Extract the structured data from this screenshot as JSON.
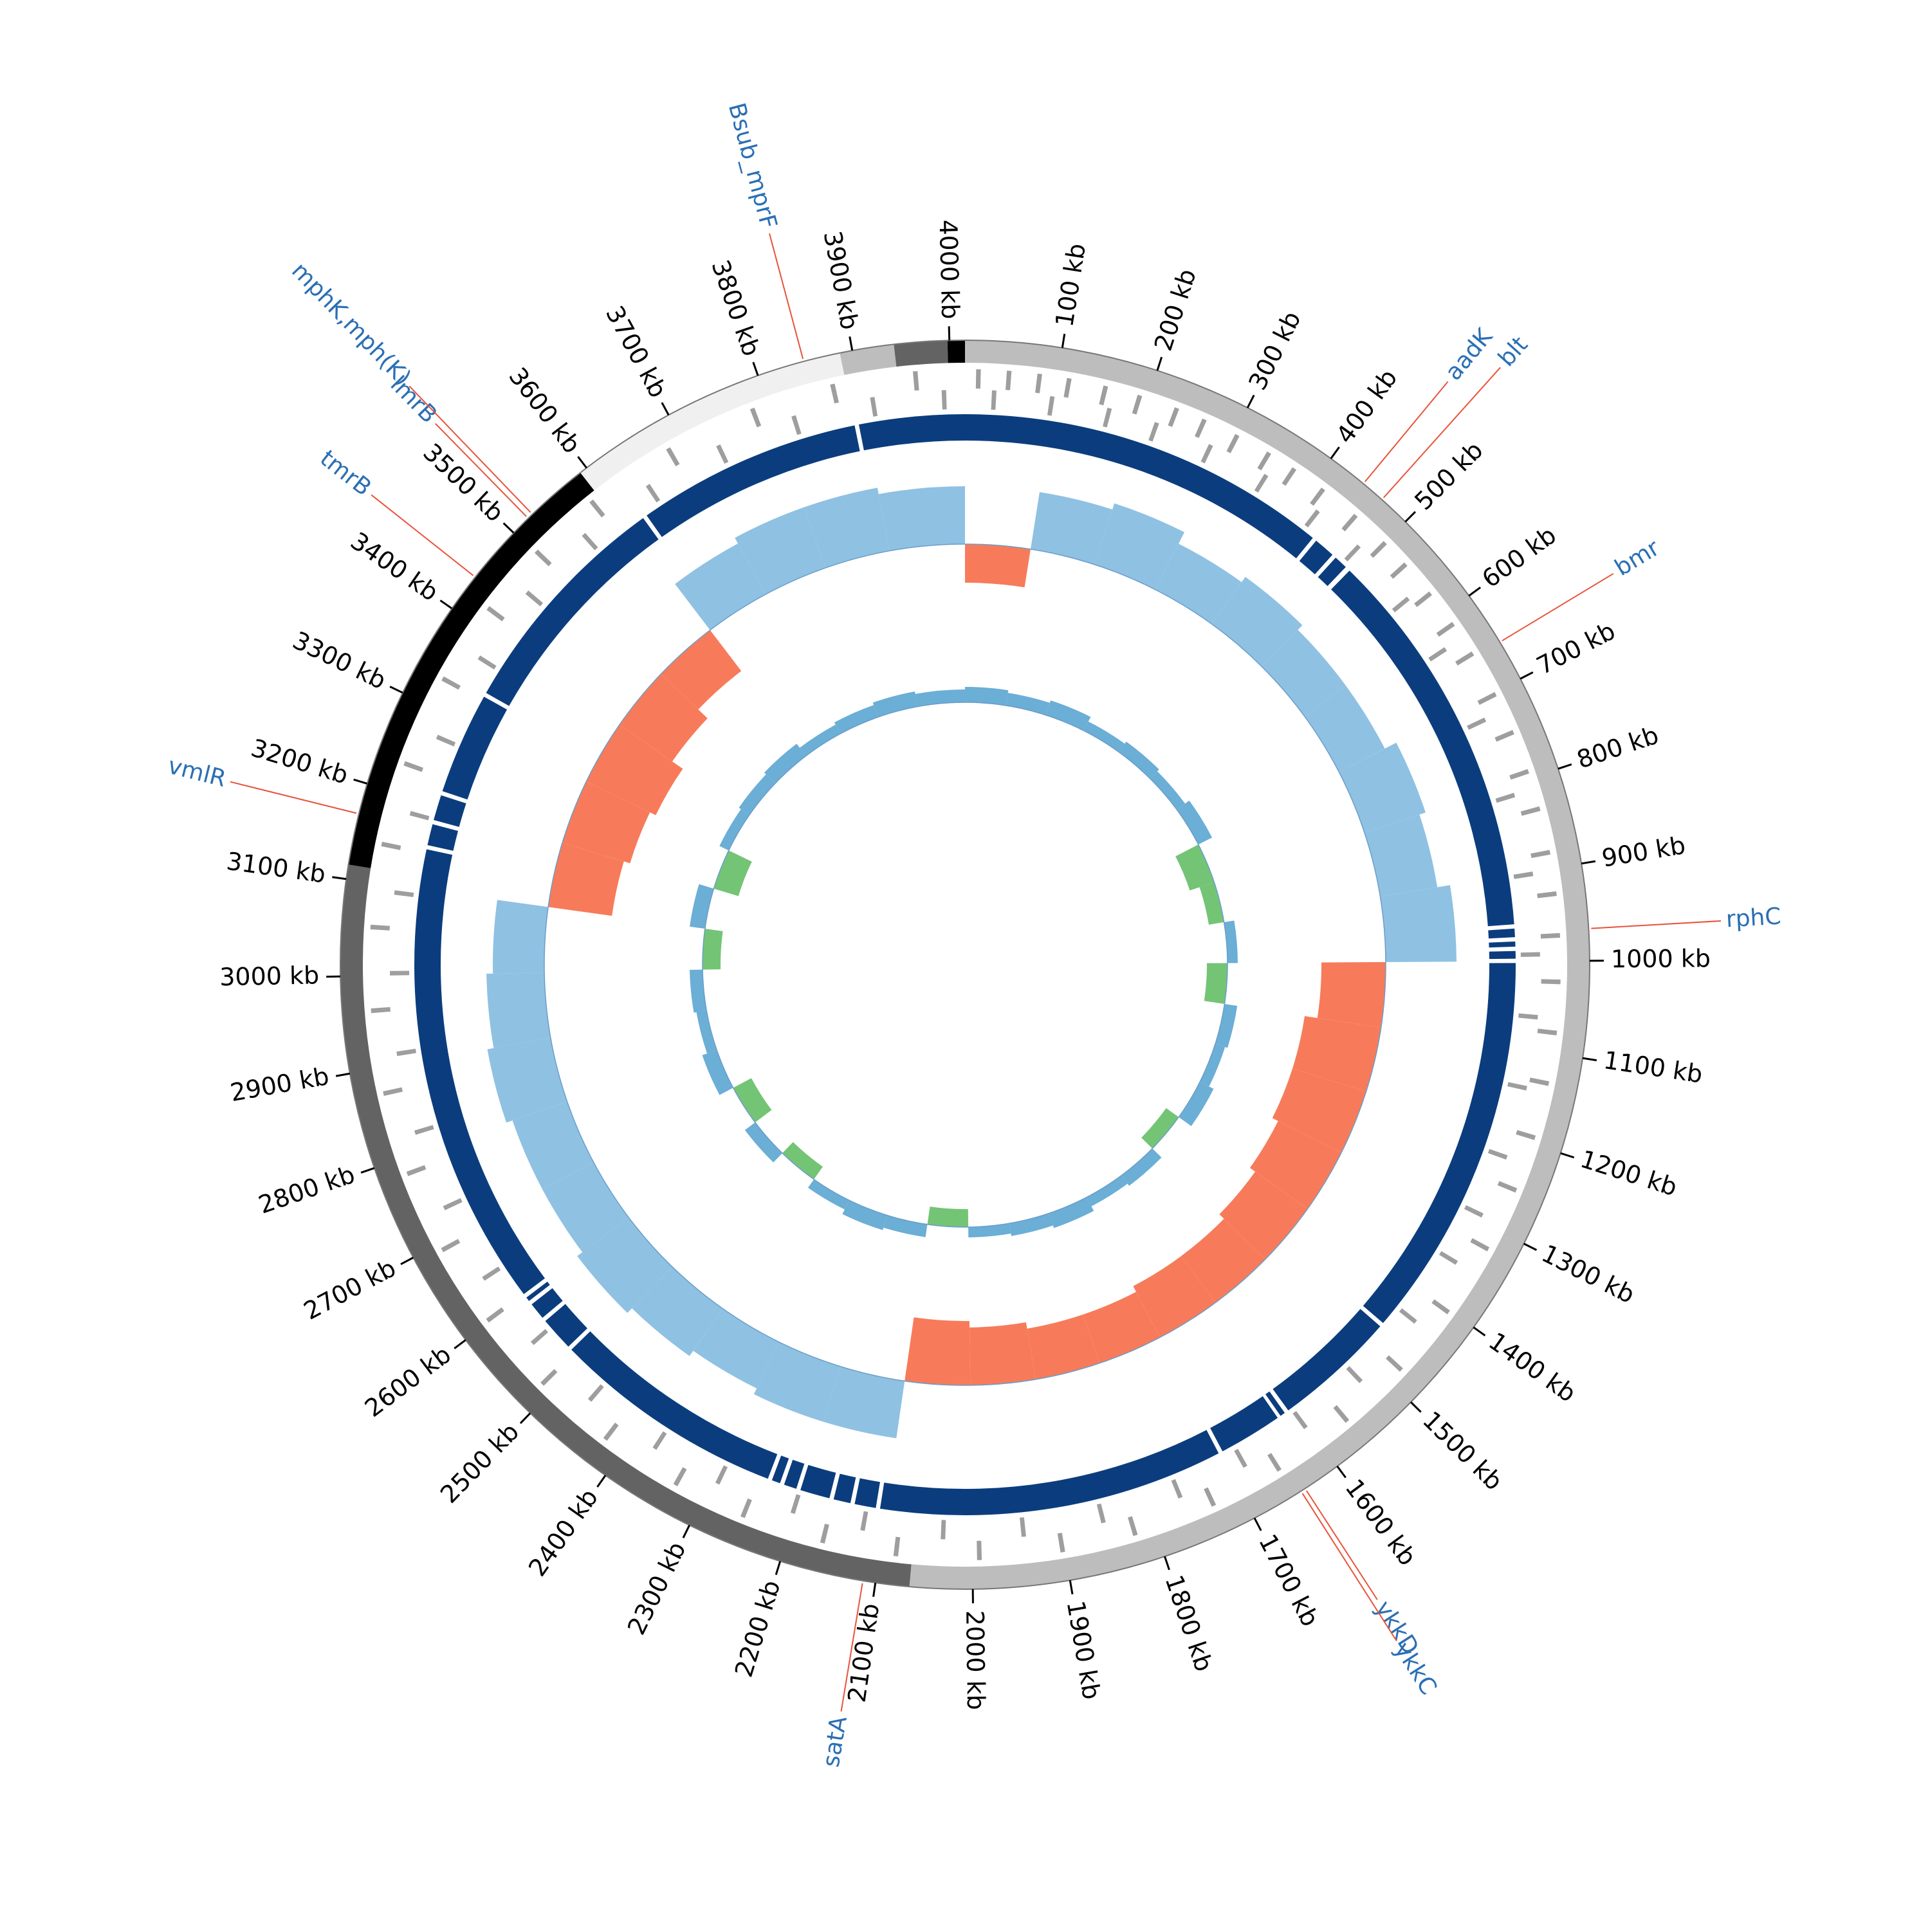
{
  "chart_data": {
    "type": "circular-genome",
    "xlim": [
      0,
      4016
    ],
    "xticks": [
      {
        "value": 100,
        "label": "100 kb"
      },
      {
        "value": 200,
        "label": "200 kb"
      },
      {
        "value": 300,
        "label": "300 kb"
      },
      {
        "value": 400,
        "label": "400 kb"
      },
      {
        "value": 500,
        "label": "500 kb"
      },
      {
        "value": 600,
        "label": "600 kb"
      },
      {
        "value": 700,
        "label": "700 kb"
      },
      {
        "value": 800,
        "label": "800 kb"
      },
      {
        "value": 900,
        "label": "900 kb"
      },
      {
        "value": 1000,
        "label": "1000 kb"
      },
      {
        "value": 1100,
        "label": "1100 kb"
      },
      {
        "value": 1200,
        "label": "1200 kb"
      },
      {
        "value": 1300,
        "label": "1300 kb"
      },
      {
        "value": 1400,
        "label": "1400 kb"
      },
      {
        "value": 1500,
        "label": "1500 kb"
      },
      {
        "value": 1600,
        "label": "1600 kb"
      },
      {
        "value": 1700,
        "label": "1700 kb"
      },
      {
        "value": 1800,
        "label": "1800 kb"
      },
      {
        "value": 1900,
        "label": "1900 kb"
      },
      {
        "value": 2000,
        "label": "2000 kb"
      },
      {
        "value": 2100,
        "label": "2100 kb"
      },
      {
        "value": 2200,
        "label": "2200 kb"
      },
      {
        "value": 2300,
        "label": "2300 kb"
      },
      {
        "value": 2400,
        "label": "2400 kb"
      },
      {
        "value": 2500,
        "label": "2500 kb"
      },
      {
        "value": 2600,
        "label": "2600 kb"
      },
      {
        "value": 2700,
        "label": "2700 kb"
      },
      {
        "value": 2800,
        "label": "2800 kb"
      },
      {
        "value": 2900,
        "label": "2900 kb"
      },
      {
        "value": 3000,
        "label": "3000 kb"
      },
      {
        "value": 3100,
        "label": "3100 kb"
      },
      {
        "value": 3200,
        "label": "3200 kb"
      },
      {
        "value": 3300,
        "label": "3300 kb"
      },
      {
        "value": 3400,
        "label": "3400 kb"
      },
      {
        "value": 3500,
        "label": "3500 kb"
      },
      {
        "value": 3600,
        "label": "3600 kb"
      },
      {
        "value": 3700,
        "label": "3700 kb"
      },
      {
        "value": 3800,
        "label": "3800 kb"
      },
      {
        "value": 3900,
        "label": "3900 kb"
      },
      {
        "value": 4000,
        "label": "4000 kb"
      }
    ],
    "contigs": [
      {
        "start": 0,
        "end": 2065,
        "color": "#bdbdbd"
      },
      {
        "start": 2065,
        "end": 3115,
        "color": "#636363"
      },
      {
        "start": 3115,
        "end": 3592,
        "color": "#000000"
      },
      {
        "start": 3592,
        "end": 3887,
        "color": "#f0f0f0"
      },
      {
        "start": 3887,
        "end": 3943,
        "color": "#bdbdbd"
      },
      {
        "start": 3943,
        "end": 3998,
        "color": "#636363"
      },
      {
        "start": 3998,
        "end": 4016,
        "color": "#000000"
      }
    ],
    "genes": {
      "color": "#9e9e9e",
      "forward": [
        12,
        45,
        78,
        110,
        150,
        188,
        230,
        262,
        301,
        340,
        372,
        410,
        455,
        498,
        530,
        571,
        612,
        650,
        700,
        745,
        790,
        832,
        880,
        925,
        970,
        1020,
        1075,
        1130,
        1190,
        1250,
        1320,
        1400,
        1480,
        1560,
        1650,
        1730,
        1820,
        1900,
        1990,
        2080,
        2160,
        2250,
        2330,
        2420,
        2510,
        2600,
        2690,
        2780,
        2870,
        2960,
        3050,
        3140,
        3230,
        3330,
        3420,
        3500,
        3580,
        3680,
        3780,
        3870,
        3960
      ],
      "reverse": [
        30,
        95,
        160,
        215,
        280,
        350,
        420,
        480,
        560,
        630,
        720,
        810,
        900,
        990,
        1060,
        1140,
        1220,
        1290,
        1350,
        1430,
        1520,
        1600,
        1680,
        1760,
        1850,
        1940,
        2030,
        2120,
        2200,
        2290,
        2370,
        2460,
        2550,
        2640,
        2730,
        2820,
        2910,
        3000,
        3090,
        3180,
        3270,
        3370,
        3460,
        3550,
        3640,
        3730,
        3820,
        3910,
        3990
      ]
    },
    "blocks": {
      "color": "#0b3d7e",
      "segments": [
        [
          0,
          437
        ],
        [
          442,
          467
        ],
        [
          472,
          488
        ],
        [
          494,
          957
        ],
        [
          962,
          972
        ],
        [
          977,
          983
        ],
        [
          988,
          997
        ],
        [
          1002,
          1457
        ],
        [
          1462,
          1607
        ],
        [
          1612,
          1618
        ],
        [
          1622,
          1697
        ],
        [
          1702,
          2107
        ],
        [
          2112,
          2137
        ],
        [
          2142,
          2162
        ],
        [
          2167,
          2202
        ],
        [
          2207,
          2222
        ],
        [
          2227,
          2237
        ],
        [
          2242,
          2517
        ],
        [
          2522,
          2562
        ],
        [
          2567,
          2587
        ],
        [
          2592,
          2597
        ],
        [
          2602,
          3147
        ],
        [
          3152,
          3177
        ],
        [
          3182,
          3212
        ],
        [
          3217,
          3337
        ],
        [
          3342,
          3617
        ],
        [
          3622,
          3887
        ],
        [
          3892,
          4016
        ]
      ]
    },
    "gc_content": {
      "ylim": [
        -1,
        1
      ],
      "positive_color": "#8fc1e3",
      "negative_color": "#f77b5a",
      "x": [
        0,
        100,
        200,
        300,
        400,
        500,
        600,
        700,
        800,
        900,
        1000,
        1100,
        1200,
        1300,
        1400,
        1500,
        1600,
        1700,
        1800,
        1900,
        2000,
        2100,
        2200,
        2300,
        2400,
        2500,
        2600,
        2700,
        2800,
        2900,
        3000,
        3100,
        3200,
        3300,
        3400,
        3500,
        3600,
        3700,
        3800,
        3900
      ],
      "values": [
        -0.3,
        0.45,
        0.5,
        0.4,
        0.45,
        0.4,
        0.4,
        0.5,
        0.45,
        0.55,
        -0.5,
        -0.6,
        -0.6,
        -0.55,
        -0.5,
        -0.45,
        -0.45,
        -0.4,
        -0.4,
        -0.45,
        -0.5,
        0.45,
        0.45,
        0.4,
        0.45,
        0.5,
        0.45,
        0.45,
        0.5,
        0.45,
        0.4,
        -0.5,
        -0.55,
        -0.6,
        -0.5,
        -0.4,
        0.45,
        0.5,
        0.5,
        0.45
      ]
    },
    "gc_skew": {
      "ylim": [
        -1,
        1
      ],
      "positive_color": "#6baed6",
      "negative_color": "#74c476",
      "x": [
        0,
        100,
        200,
        300,
        400,
        500,
        600,
        700,
        800,
        900,
        1000,
        1100,
        1200,
        1300,
        1400,
        1500,
        1600,
        1700,
        1800,
        1900,
        2000,
        2100,
        2200,
        2300,
        2400,
        2500,
        2600,
        2700,
        2800,
        2900,
        3000,
        3100,
        3200,
        3300,
        3400,
        3500,
        3600,
        3700,
        3800,
        3900
      ],
      "values": [
        0.3,
        0.25,
        0.3,
        0.2,
        0.25,
        0.2,
        0.3,
        -0.5,
        -0.3,
        0.2,
        -0.4,
        0.25,
        0.2,
        0.3,
        -0.3,
        0.25,
        0.2,
        0.3,
        0.25,
        0.2,
        -0.35,
        0.25,
        0.3,
        0.2,
        -0.3,
        0.25,
        -0.4,
        0.3,
        0.2,
        0.25,
        -0.35,
        0.3,
        -0.5,
        0.2,
        0.25,
        0.3,
        0.2,
        0.25,
        0.3,
        0.25
      ]
    },
    "annotation_color": "#2a6fb4",
    "annotation_line_color": "#e8533a",
    "annotations": [
      {
        "label": "aadK",
        "position": 442
      },
      {
        "label": "blt",
        "position": 467
      },
      {
        "label": "bmr",
        "position": 657
      },
      {
        "label": "rphC",
        "position": 967
      },
      {
        "label": "ykkD",
        "position": 1640
      },
      {
        "label": "ykkC",
        "position": 1645
      },
      {
        "label": "satA",
        "position": 2113
      },
      {
        "label": "vmlR",
        "position": 3168
      },
      {
        "label": "tmrB",
        "position": 3440
      },
      {
        "label": "lmrB",
        "position": 3521
      },
      {
        "label": "mphK,mph(K)",
        "position": 3527
      },
      {
        "label": "Bsub_mprF",
        "position": 3849
      }
    ]
  }
}
